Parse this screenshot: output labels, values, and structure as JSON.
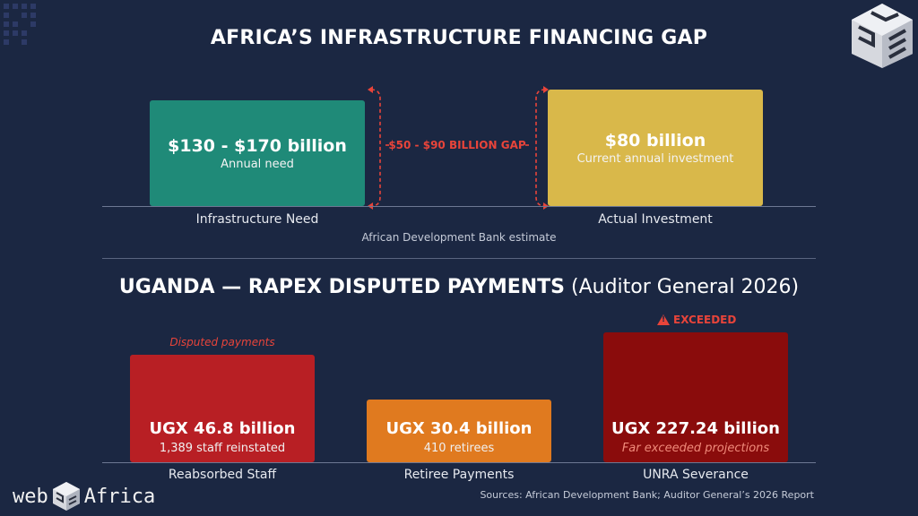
{
  "chart_data": [
    {
      "type": "bar",
      "title": "AFRICA’S INFRASTRUCTURE FINANCING GAP",
      "categories": [
        "Infrastructure Need",
        "Actual Investment"
      ],
      "bars": [
        {
          "label": "$130 - $170 billion",
          "sublabel": "Annual need",
          "range": [
            130,
            170
          ],
          "color": "#1f8a78"
        },
        {
          "label": "$80 billion",
          "sublabel": "Current annual investment",
          "value": 80,
          "color": "#d9b84a"
        }
      ],
      "annotations": {
        "gap": "$50 - $90 BILLION GAP",
        "source_note": "African Development Bank estimate"
      }
    },
    {
      "type": "bar",
      "title_bold": "UGANDA — RAPEX DISPUTED PAYMENTS",
      "title_normal": "(Auditor General 2026)",
      "categories": [
        "Reabsorbed Staff",
        "Retiree Payments",
        "UNRA Severance"
      ],
      "bars": [
        {
          "label": "UGX 46.8 billion",
          "sublabel": "1,389 staff reinstated",
          "value": 46.8,
          "color": "#b81f24"
        },
        {
          "label": "UGX 30.4 billion",
          "sublabel": "410 retirees",
          "value": 30.4,
          "color": "#e07a1f"
        },
        {
          "label": "UGX 227.24 billion",
          "sublabel": "Far exceeded projections",
          "value": 227.24,
          "color": "#8a0c0c"
        }
      ],
      "annotations": {
        "disputed": "Disputed payments",
        "exceeded": "EXCEEDED"
      }
    }
  ],
  "footer": {
    "sources": "Sources: African Development Bank; Auditor General’s 2026 Report",
    "logo_left": "web",
    "logo_right": "Africa"
  },
  "icons": {
    "warning": "warning-triangle-icon",
    "brand": "web3-cube-logo"
  }
}
